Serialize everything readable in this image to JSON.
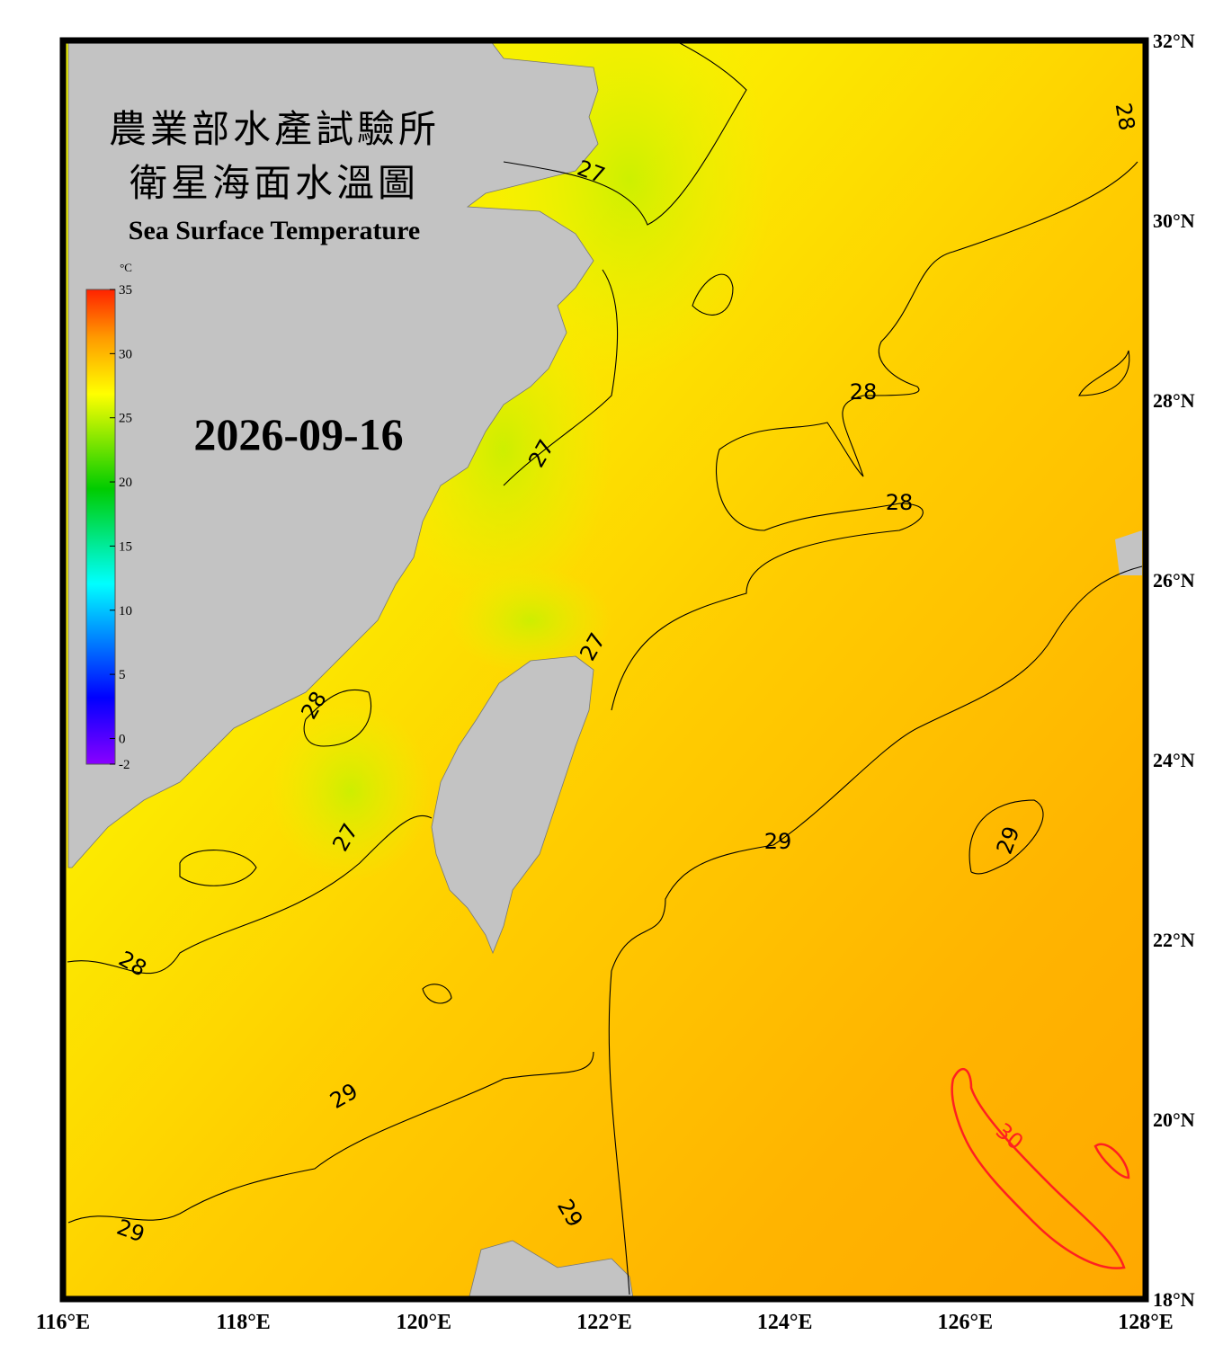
{
  "title_zh": [
    "農業部水產試驗所",
    "衛星海面水溫圖"
  ],
  "title_en": "Sea Surface Temperature",
  "date": "2026-09-16",
  "colorbar": {
    "unit": "°C",
    "range": [
      -2,
      35
    ],
    "ticks": [
      35,
      30,
      25,
      20,
      15,
      10,
      5,
      0,
      -2
    ]
  },
  "map": {
    "lon_range": [
      116,
      128
    ],
    "lat_range": [
      18,
      32
    ],
    "lon_ticks": [
      {
        "value": 116,
        "label": "116°E"
      },
      {
        "value": 118,
        "label": "118°E"
      },
      {
        "value": 120,
        "label": "120°E"
      },
      {
        "value": 122,
        "label": "122°E"
      },
      {
        "value": 124,
        "label": "124°E"
      },
      {
        "value": 126,
        "label": "126°E"
      },
      {
        "value": 128,
        "label": "128°E"
      }
    ],
    "lat_ticks": [
      {
        "value": 18,
        "label": "18°N"
      },
      {
        "value": 20,
        "label": "20°N"
      },
      {
        "value": 22,
        "label": "22°N"
      },
      {
        "value": 24,
        "label": "24°N"
      },
      {
        "value": 26,
        "label": "26°N"
      },
      {
        "value": 28,
        "label": "28°N"
      },
      {
        "value": 30,
        "label": "30°N"
      },
      {
        "value": 32,
        "label": "32°N"
      }
    ]
  },
  "contour_labels": [
    27,
    27,
    28,
    28,
    28,
    27,
    28,
    27,
    28,
    29,
    29,
    29,
    29,
    29,
    {
      "value": 30,
      "color": "#ff2020"
    }
  ]
}
